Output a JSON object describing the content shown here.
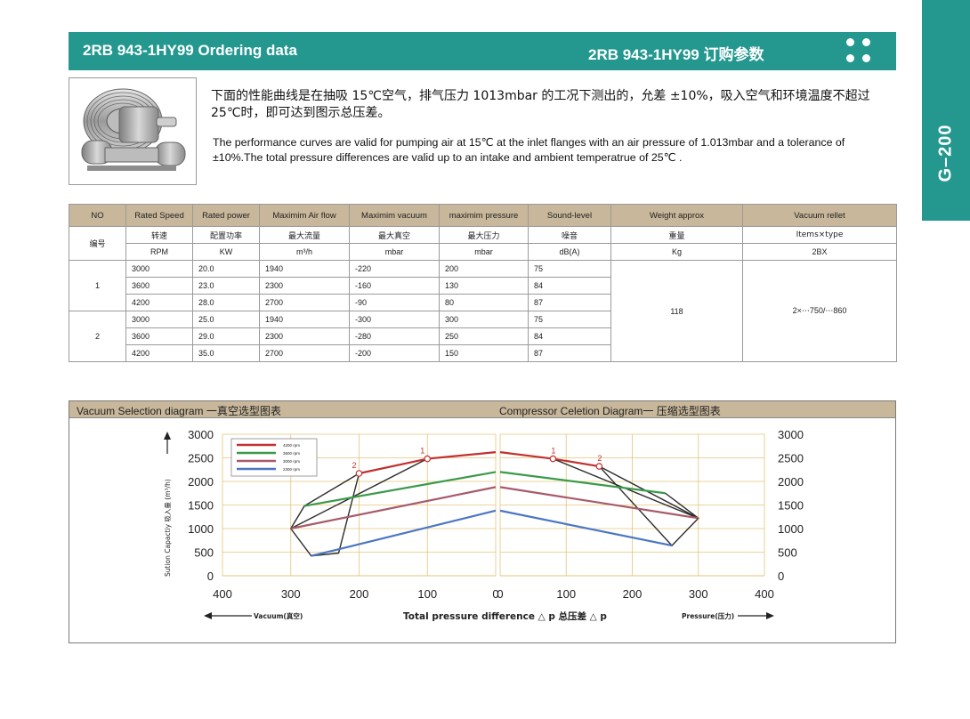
{
  "header": {
    "title_en": "2RB 943-1HY99 Ordering data",
    "title_cn": "2RB  943-1HY99 订购参数"
  },
  "sidetab": {
    "label": "G–200"
  },
  "description": {
    "cn": "下面的性能曲线是在抽吸 15℃空气，排气压力 1013mbar 的工况下测出的，允差 ±10%，吸入空气和环境温度不超过 25℃时，即可达到图示总压差。",
    "en": "The performance curves are valid for pumping air at 15℃ at the inlet flanges with an air pressure of 1.013mbar and a tolerance of ±10%.The total pressure differences are valid up to an intake and ambient temperatrue of 25℃ ."
  },
  "product_image": {
    "icon": "side-channel-blower-image"
  },
  "table": {
    "headers_en": [
      "NO",
      "Rated Speed",
      "Rated power",
      "Maximim Air flow",
      "Maximim vacuum",
      "maximim pressure",
      "Sound-level",
      "Weight approx",
      "Vacuum rellet"
    ],
    "headers_cn": [
      "编号",
      "转速",
      "配置功率",
      "最大流量",
      "最大真空",
      "最大压力",
      "噪音",
      "重量",
      "Items×type"
    ],
    "units": [
      "RPM",
      "KW",
      "m³/h",
      "mbar",
      "mbar",
      "dB(A)",
      "Kg",
      "2BX"
    ],
    "groups": [
      {
        "no": "1",
        "rows": [
          [
            "3000",
            "20.0",
            "1940",
            "-220",
            "200",
            "75"
          ],
          [
            "3600",
            "23.0",
            "2300",
            "-160",
            "130",
            "84"
          ],
          [
            "4200",
            "28.0",
            "2700",
            "-90",
            "80",
            "87"
          ]
        ]
      },
      {
        "no": "2",
        "rows": [
          [
            "3000",
            "25.0",
            "1940",
            "-300",
            "300",
            "75"
          ],
          [
            "3600",
            "29.0",
            "2300",
            "-280",
            "250",
            "84"
          ],
          [
            "4200",
            "35.0",
            "2700",
            "-200",
            "150",
            "87"
          ]
        ]
      }
    ],
    "weight": "118",
    "relief": "2×⋯750/⋯860"
  },
  "diagram": {
    "vacuum_title": "Vacuum Selection diagram 一真空选型图表",
    "compressor_title": "Compressor Celetion Diagram一 压缩选型图表",
    "y_axis_label": "Sution Capactiy 吸入量 (m³/h)",
    "x_axis_center_label": "Total pressure difference △ p 总压差 △ p",
    "x_axis_left_label": "Vacuum(真空)",
    "x_axis_right_label": "Pressure(压力)",
    "point_labels": [
      "1",
      "2",
      "1",
      "2"
    ]
  },
  "chart_data": {
    "type": "line",
    "x_ticks_left": [
      "400",
      "300",
      "200",
      "100",
      "0"
    ],
    "x_ticks_right": [
      "0",
      "100",
      "200",
      "300",
      "400"
    ],
    "y_ticks": [
      "3000",
      "2500",
      "2000",
      "1500",
      "1000",
      "500",
      "0"
    ],
    "ylim": [
      0,
      3000
    ],
    "xlim_vacuum": [
      0,
      400
    ],
    "xlim_pressure": [
      0,
      400
    ],
    "legend": [
      "4200 rpm",
      "3600 rpm",
      "3000 rpm",
      "2300 rpm"
    ],
    "legend_position": "top-left",
    "grid": true,
    "series": [
      {
        "name": "4200 rpm",
        "color": "#c2302f",
        "vacuum": [
          [
            200,
            2170
          ],
          [
            100,
            2480
          ],
          [
            0,
            2620
          ]
        ],
        "pressure": [
          [
            0,
            2620
          ],
          [
            80,
            2480
          ],
          [
            150,
            2320
          ]
        ]
      },
      {
        "name": "3600 rpm",
        "color": "#3b9a4a",
        "vacuum": [
          [
            280,
            1480
          ],
          [
            0,
            2200
          ]
        ],
        "pressure": [
          [
            0,
            2200
          ],
          [
            250,
            1750
          ]
        ]
      },
      {
        "name": "3000 rpm",
        "color": "#a85a6a",
        "vacuum": [
          [
            300,
            1000
          ],
          [
            0,
            1880
          ]
        ],
        "pressure": [
          [
            0,
            1880
          ],
          [
            300,
            1220
          ]
        ]
      },
      {
        "name": "2300 rpm",
        "color": "#4a77c4",
        "vacuum": [
          [
            270,
            420
          ],
          [
            0,
            1380
          ]
        ],
        "pressure": [
          [
            0,
            1380
          ],
          [
            260,
            640
          ]
        ]
      }
    ],
    "envelope_vacuum": [
      [
        [
          200,
          2170
        ],
        [
          280,
          1480
        ],
        [
          300,
          1000
        ],
        [
          270,
          420
        ],
        [
          230,
          480
        ],
        [
          200,
          2170
        ]
      ],
      [
        [
          100,
          2480
        ],
        [
          300,
          1000
        ]
      ]
    ],
    "envelope_pressure": [
      [
        [
          80,
          2480
        ],
        [
          300,
          1220
        ],
        [
          260,
          640
        ],
        [
          150,
          2320
        ]
      ],
      [
        [
          150,
          2320
        ],
        [
          300,
          1220
        ],
        [
          250,
          1750
        ]
      ]
    ],
    "markers_vacuum": [
      [
        100,
        2480,
        "1"
      ],
      [
        200,
        2170,
        "2"
      ]
    ],
    "markers_pressure": [
      [
        80,
        2480,
        "1"
      ],
      [
        150,
        2320,
        "2"
      ]
    ]
  }
}
